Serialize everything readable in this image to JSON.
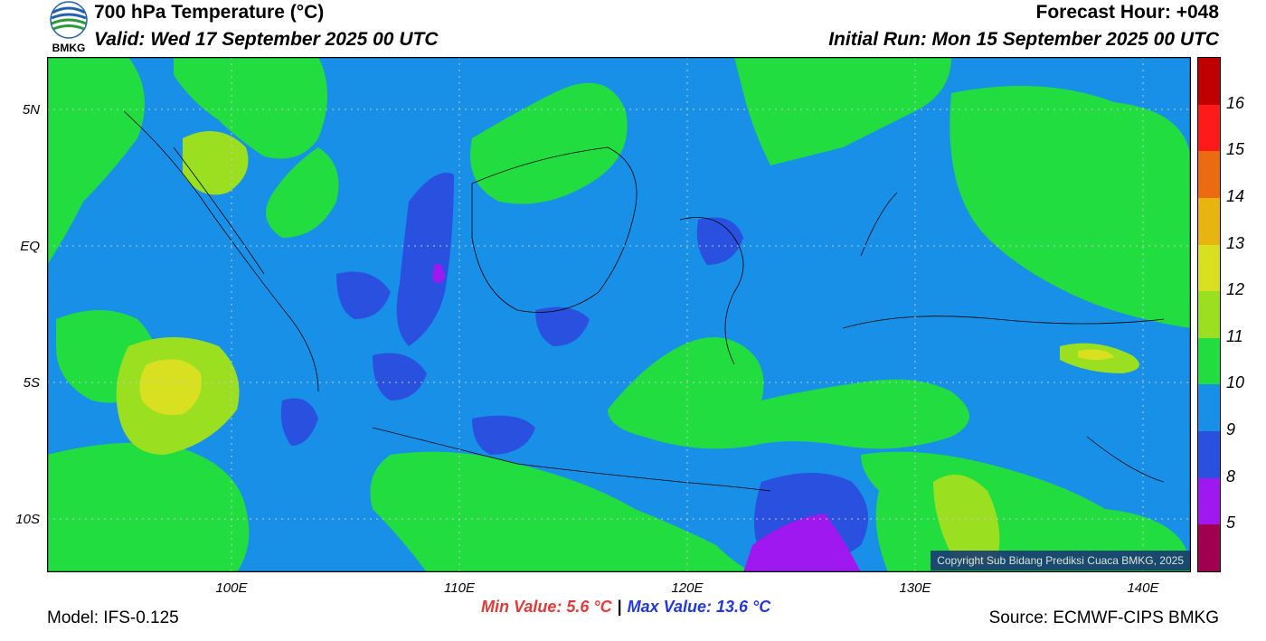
{
  "header": {
    "title": "700 hPa Temperature (°C)",
    "valid": "Valid: Wed 17 September 2025 00 UTC",
    "forecast_hour": "Forecast Hour: +048",
    "initial_run": "Initial Run: Mon 15 September 2025 00 UTC"
  },
  "logo": {
    "text": "BMKG"
  },
  "axes": {
    "lat_labels": [
      "5N",
      "EQ",
      "5S",
      "10S"
    ],
    "lon_labels": [
      "100E",
      "110E",
      "120E",
      "130E",
      "140E"
    ]
  },
  "colorbar": {
    "labels": [
      "16",
      "15",
      "14",
      "13",
      "12",
      "11",
      "10",
      "9",
      "8",
      "5"
    ],
    "colors": [
      "#c00000",
      "#ff1a1a",
      "#ec6a10",
      "#e8b410",
      "#d8e020",
      "#9ae020",
      "#22dd40",
      "#1890e8",
      "#2a50e0",
      "#a018f0",
      "#a00050"
    ]
  },
  "stats": {
    "min_label": "Min Value: 5.6 °C",
    "max_label": "Max Value: 13.6 °C"
  },
  "footer": {
    "model": "Model: IFS-0.125",
    "source": "Source: ECMWF-CIPS BMKG",
    "copyright": "Copyright Sub Bidang Prediksi Cuaca BMKG, 2025"
  }
}
